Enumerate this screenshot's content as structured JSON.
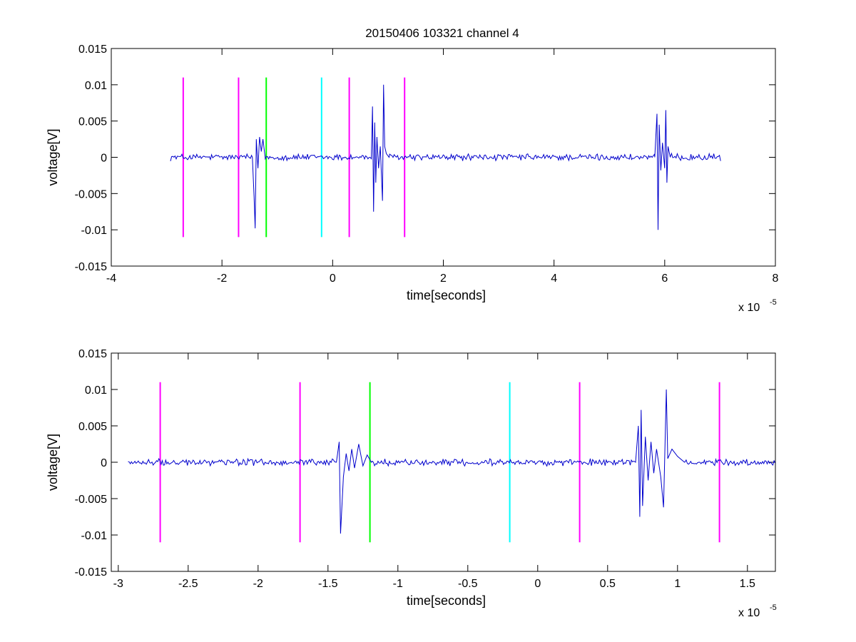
{
  "chart_data": [
    {
      "type": "line",
      "title": "20150406 103321 channel 4",
      "xlabel": "time[seconds]",
      "ylabel": "voltage[V]",
      "x_multiplier": "x 10",
      "x_multiplier_exp": "-5",
      "xlim": [
        -4,
        8
      ],
      "ylim": [
        -0.015,
        0.015
      ],
      "x_ticks": [
        -4,
        -2,
        0,
        2,
        4,
        6,
        8
      ],
      "x_tick_labels": [
        "-4",
        "-2",
        "0",
        "2",
        "4",
        "6",
        "8"
      ],
      "y_ticks": [
        -0.015,
        -0.01,
        -0.005,
        0,
        0.005,
        0.01,
        0.015
      ],
      "y_tick_labels": [
        "-0.015",
        "-0.01",
        "-0.005",
        "0",
        "0.005",
        "0.01",
        "0.015"
      ],
      "signal_color": "#0000cc",
      "signal_range": [
        -2.93,
        7.03
      ],
      "bursts": [
        {
          "points": [
            [
              -1.45,
              0
            ],
            [
              -1.42,
              -0.0055
            ],
            [
              -1.4,
              -0.0098
            ],
            [
              -1.38,
              0.0025
            ],
            [
              -1.35,
              -0.0015
            ],
            [
              -1.32,
              0.0028
            ],
            [
              -1.29,
              0.0008
            ],
            [
              -1.26,
              0.0025
            ],
            [
              -1.22,
              0
            ]
          ]
        },
        {
          "points": [
            [
              0.7,
              0
            ],
            [
              0.72,
              0.007
            ],
            [
              0.74,
              -0.0075
            ],
            [
              0.76,
              0.0048
            ],
            [
              0.78,
              -0.0035
            ],
            [
              0.8,
              0.0028
            ],
            [
              0.83,
              -0.0015
            ],
            [
              0.86,
              0.0015
            ],
            [
              0.9,
              -0.006
            ],
            [
              0.92,
              0.01
            ],
            [
              0.94,
              0.0015
            ],
            [
              0.97,
              0.0005
            ],
            [
              1.02,
              0
            ]
          ]
        },
        {
          "points": [
            [
              5.82,
              0
            ],
            [
              5.86,
              0.006
            ],
            [
              5.88,
              -0.01
            ],
            [
              5.9,
              0.0045
            ],
            [
              5.93,
              -0.0018
            ],
            [
              5.96,
              0.002
            ],
            [
              6.0,
              -0.0015
            ],
            [
              6.02,
              0.0065
            ],
            [
              6.04,
              -0.0035
            ],
            [
              6.06,
              0.0015
            ],
            [
              6.1,
              0
            ]
          ]
        }
      ],
      "markers": [
        {
          "x": -2.7,
          "color": "#ff00ff",
          "y0": -0.011,
          "y1": 0.011
        },
        {
          "x": -1.7,
          "color": "#ff00ff",
          "y0": -0.011,
          "y1": 0.011
        },
        {
          "x": -1.2,
          "color": "#00ff00",
          "y0": -0.011,
          "y1": 0.011
        },
        {
          "x": -0.2,
          "color": "#00ffff",
          "y0": -0.011,
          "y1": 0.011
        },
        {
          "x": 0.3,
          "color": "#ff00ff",
          "y0": -0.011,
          "y1": 0.011
        },
        {
          "x": 1.3,
          "color": "#ff00ff",
          "y0": -0.011,
          "y1": 0.011
        }
      ]
    },
    {
      "type": "line",
      "title": "",
      "xlabel": "time[seconds]",
      "ylabel": "voltage[V]",
      "x_multiplier": "x 10",
      "x_multiplier_exp": "-5",
      "xlim": [
        -3.05,
        1.7
      ],
      "ylim": [
        -0.015,
        0.015
      ],
      "x_ticks": [
        -3,
        -2.5,
        -2,
        -1.5,
        -1,
        -0.5,
        0,
        0.5,
        1,
        1.5
      ],
      "x_tick_labels": [
        "-3",
        "-2.5",
        "-2",
        "-1.5",
        "-1",
        "-0.5",
        "0",
        "0.5",
        "1",
        "1.5"
      ],
      "y_ticks": [
        -0.015,
        -0.01,
        -0.005,
        0,
        0.005,
        0.01,
        0.015
      ],
      "y_tick_labels": [
        "-0.015",
        "-0.01",
        "-0.005",
        "0",
        "0.005",
        "0.01",
        "0.015"
      ],
      "signal_color": "#0000cc",
      "signal_range": [
        -2.93,
        1.7
      ],
      "bursts": [
        {
          "points": [
            [
              -1.44,
              0
            ],
            [
              -1.42,
              0.0028
            ],
            [
              -1.41,
              -0.0098
            ],
            [
              -1.39,
              -0.002
            ],
            [
              -1.37,
              0.0012
            ],
            [
              -1.35,
              -0.0012
            ],
            [
              -1.33,
              0.0018
            ],
            [
              -1.31,
              -0.0008
            ],
            [
              -1.28,
              0.0025
            ],
            [
              -1.25,
              -0.0005
            ],
            [
              -1.22,
              0.001
            ],
            [
              -1.19,
              0
            ]
          ]
        },
        {
          "points": [
            [
              0.7,
              0
            ],
            [
              0.72,
              0.005
            ],
            [
              0.73,
              -0.0075
            ],
            [
              0.74,
              0.0072
            ],
            [
              0.75,
              -0.006
            ],
            [
              0.77,
              0.0035
            ],
            [
              0.79,
              -0.0025
            ],
            [
              0.81,
              0.0028
            ],
            [
              0.83,
              -0.0015
            ],
            [
              0.85,
              0.0018
            ],
            [
              0.88,
              -0.002
            ],
            [
              0.9,
              -0.0062
            ],
            [
              0.92,
              0.01
            ],
            [
              0.93,
              0.0005
            ],
            [
              0.96,
              0.0018
            ],
            [
              1.0,
              0.0008
            ],
            [
              1.05,
              0
            ]
          ]
        }
      ],
      "markers": [
        {
          "x": -2.7,
          "color": "#ff00ff",
          "y0": -0.011,
          "y1": 0.011
        },
        {
          "x": -1.7,
          "color": "#ff00ff",
          "y0": -0.011,
          "y1": 0.011
        },
        {
          "x": -1.2,
          "color": "#00ff00",
          "y0": -0.011,
          "y1": 0.011
        },
        {
          "x": -0.2,
          "color": "#00ffff",
          "y0": -0.011,
          "y1": 0.011
        },
        {
          "x": 0.3,
          "color": "#ff00ff",
          "y0": -0.011,
          "y1": 0.011
        },
        {
          "x": 1.3,
          "color": "#ff00ff",
          "y0": -0.011,
          "y1": 0.011
        }
      ]
    }
  ]
}
